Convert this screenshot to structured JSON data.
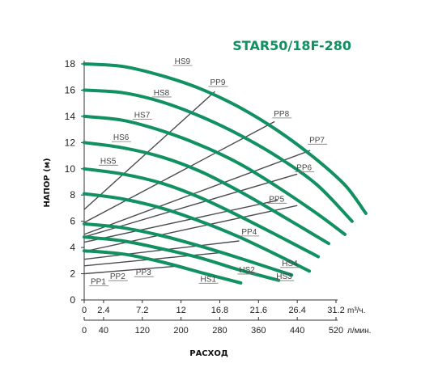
{
  "colors": {
    "curve": "#119061",
    "system": "#4a4a52",
    "title": "#119061",
    "axis": "#333333"
  },
  "chart_data": {
    "type": "line",
    "title": "STAR50/18F-280",
    "ylabel": "НАПОР (м)",
    "xlabel": "РАСХОД",
    "ylim": [
      0,
      18
    ],
    "xlim_m3h": [
      0,
      31.2
    ],
    "y_ticks": [
      "0",
      "2",
      "4",
      "6",
      "8",
      "10",
      "12",
      "14",
      "16",
      "18"
    ],
    "x_axis_m3h": {
      "ticks": [
        "0",
        "2.4",
        "7.2",
        "12",
        "16.8",
        "21.6",
        "26.4",
        "31.2"
      ],
      "unit": "m³/ч."
    },
    "x_axis_lmin": {
      "ticks": [
        "0",
        "40",
        "120",
        "200",
        "280",
        "360",
        "440",
        "520"
      ],
      "unit": "л/мин."
    },
    "grid": false,
    "series": [
      {
        "name": "HS1",
        "kind": "pump",
        "x": [
          0,
          4.8,
          9.6,
          14.4,
          19.4
        ],
        "y": [
          3.75,
          3.5,
          2.9,
          2.1,
          1.3
        ]
      },
      {
        "name": "HS2",
        "kind": "pump",
        "x": [
          0,
          4.8,
          9.6,
          14.4,
          19.2,
          24.1
        ],
        "y": [
          4.8,
          4.5,
          3.9,
          3.2,
          2.3,
          1.5
        ]
      },
      {
        "name": "HS3",
        "kind": "pump",
        "x": [
          0,
          4.8,
          9.6,
          14.4,
          19.2,
          25.7
        ],
        "y": [
          5.8,
          5.5,
          4.9,
          4.1,
          3.2,
          1.9
        ]
      },
      {
        "name": "HS4",
        "kind": "pump",
        "x": [
          0,
          4.8,
          9.6,
          14.4,
          19.2,
          24.0,
          27.9
        ],
        "y": [
          8.1,
          7.7,
          7.0,
          6.0,
          4.8,
          3.4,
          2.2
        ]
      },
      {
        "name": "HS5",
        "kind": "pump",
        "x": [
          0,
          4.8,
          9.6,
          14.4,
          19.2,
          24.0,
          29.0
        ],
        "y": [
          10.0,
          9.6,
          8.9,
          7.8,
          6.4,
          4.9,
          3.3
        ]
      },
      {
        "name": "HS6",
        "kind": "pump",
        "x": [
          0,
          4.8,
          9.6,
          14.4,
          19.2,
          24.0,
          30.3
        ],
        "y": [
          12.0,
          11.6,
          10.9,
          9.8,
          8.3,
          6.6,
          4.3
        ]
      },
      {
        "name": "HS7",
        "kind": "pump",
        "x": [
          0,
          4.8,
          9.6,
          14.4,
          19.2,
          24.0,
          28.8,
          32.3
        ],
        "y": [
          14.0,
          13.7,
          12.9,
          11.8,
          10.4,
          8.6,
          6.6,
          5.0
        ]
      },
      {
        "name": "HS8",
        "kind": "pump",
        "x": [
          0,
          4.8,
          9.6,
          14.4,
          19.2,
          24.0,
          28.8,
          33.2
        ],
        "y": [
          16.0,
          15.8,
          15.1,
          14.0,
          12.6,
          10.9,
          8.8,
          6.0
        ]
      },
      {
        "name": "HS9",
        "kind": "pump",
        "x": [
          0,
          4.8,
          9.6,
          14.4,
          19.2,
          24.0,
          28.8,
          32.4,
          34.9
        ],
        "y": [
          18.0,
          17.8,
          17.1,
          16.1,
          14.7,
          12.9,
          10.7,
          8.7,
          6.6
        ]
      },
      {
        "name": "PP1",
        "kind": "system",
        "x": [
          0,
          12.0
        ],
        "y": [
          2.0,
          2.6
        ]
      },
      {
        "name": "PP2",
        "kind": "system",
        "x": [
          0,
          16.8
        ],
        "y": [
          2.6,
          3.6
        ]
      },
      {
        "name": "PP3",
        "kind": "system",
        "x": [
          0,
          19.2
        ],
        "y": [
          3.1,
          4.5
        ]
      },
      {
        "name": "PP4",
        "kind": "system",
        "x": [
          0,
          26.4
        ],
        "y": [
          3.7,
          7.2
        ]
      },
      {
        "name": "PP5",
        "kind": "system",
        "x": [
          0,
          24.0
        ],
        "y": [
          4.4,
          7.6
        ]
      },
      {
        "name": "PP6",
        "kind": "system",
        "x": [
          0,
          26.4
        ],
        "y": [
          4.8,
          9.6
        ]
      },
      {
        "name": "PP7",
        "kind": "system",
        "x": [
          0,
          28.0
        ],
        "y": [
          5.0,
          11.4
        ]
      },
      {
        "name": "PP8",
        "kind": "system",
        "x": [
          0,
          23.6
        ],
        "y": [
          5.9,
          13.6
        ]
      },
      {
        "name": "PP9",
        "kind": "system",
        "x": [
          0,
          16.2
        ],
        "y": [
          6.9,
          15.9
        ]
      }
    ],
    "labels": [
      {
        "text": "HS9",
        "at": [
          11.2,
          18.0
        ]
      },
      {
        "text": "HS8",
        "at": [
          8.6,
          15.6
        ]
      },
      {
        "text": "HS7",
        "at": [
          6.2,
          13.9
        ]
      },
      {
        "text": "HS6",
        "at": [
          3.6,
          12.2
        ]
      },
      {
        "text": "HS5",
        "at": [
          2.0,
          10.4
        ]
      },
      {
        "text": "HS4",
        "at": [
          24.5,
          2.6
        ]
      },
      {
        "text": "HS3",
        "at": [
          23.8,
          1.6
        ]
      },
      {
        "text": "HS2",
        "at": [
          19.2,
          2.1
        ]
      },
      {
        "text": "HS1",
        "at": [
          14.4,
          1.4
        ]
      },
      {
        "text": "PP9",
        "at": [
          15.6,
          16.4
        ]
      },
      {
        "text": "PP8",
        "at": [
          23.5,
          14.0
        ]
      },
      {
        "text": "PP7",
        "at": [
          27.9,
          12.0
        ]
      },
      {
        "text": "PP6",
        "at": [
          26.3,
          9.9
        ]
      },
      {
        "text": "PP5",
        "at": [
          22.9,
          7.5
        ]
      },
      {
        "text": "PP4",
        "at": [
          19.5,
          5.0
        ]
      },
      {
        "text": "PP3",
        "at": [
          6.4,
          1.9
        ]
      },
      {
        "text": "PP2",
        "at": [
          3.2,
          1.6
        ]
      },
      {
        "text": "PP1",
        "at": [
          0.8,
          1.2
        ]
      }
    ]
  }
}
